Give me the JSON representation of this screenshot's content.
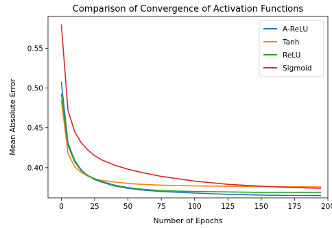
{
  "chart_data": {
    "type": "line",
    "title": "Comparison of Convergence of Activation Functions",
    "xlabel": "Number of Epochs",
    "ylabel": "Mean Absolute Error",
    "xlim": [
      -10,
      200
    ],
    "ylim": [
      0.362,
      0.59
    ],
    "xticks": [
      0,
      25,
      50,
      75,
      100,
      125,
      150,
      175,
      200
    ],
    "yticks": [
      0.4,
      0.45,
      0.5,
      0.55
    ],
    "ytick_labels": [
      "0.40",
      "0.45",
      "0.50",
      "0.55"
    ],
    "grid": false,
    "legend_position": "top-right",
    "x": [
      0,
      5,
      10,
      15,
      20,
      25,
      30,
      40,
      50,
      60,
      75,
      100,
      125,
      150,
      175,
      195
    ],
    "series": [
      {
        "name": "A-ReLU",
        "color": "#1f77b4",
        "values": [
          0.508,
          0.431,
          0.409,
          0.397,
          0.39,
          0.385,
          0.382,
          0.377,
          0.374,
          0.372,
          0.37,
          0.368,
          0.3665,
          0.3655,
          0.365,
          0.3648
        ]
      },
      {
        "name": "Tanh",
        "color": "#ff7f0e",
        "values": [
          0.485,
          0.418,
          0.401,
          0.394,
          0.389,
          0.386,
          0.384,
          0.382,
          0.38,
          0.379,
          0.378,
          0.377,
          0.3765,
          0.3762,
          0.376,
          0.3758
        ]
      },
      {
        "name": "ReLU",
        "color": "#2ca02c",
        "values": [
          0.493,
          0.428,
          0.407,
          0.396,
          0.39,
          0.386,
          0.383,
          0.378,
          0.375,
          0.373,
          0.371,
          0.37,
          0.3695,
          0.369,
          0.369,
          0.369
        ]
      },
      {
        "name": "Sigmoid",
        "color": "#d62728",
        "values": [
          0.58,
          0.472,
          0.445,
          0.431,
          0.422,
          0.415,
          0.41,
          0.403,
          0.398,
          0.394,
          0.389,
          0.383,
          0.379,
          0.3765,
          0.375,
          0.374
        ]
      }
    ]
  }
}
